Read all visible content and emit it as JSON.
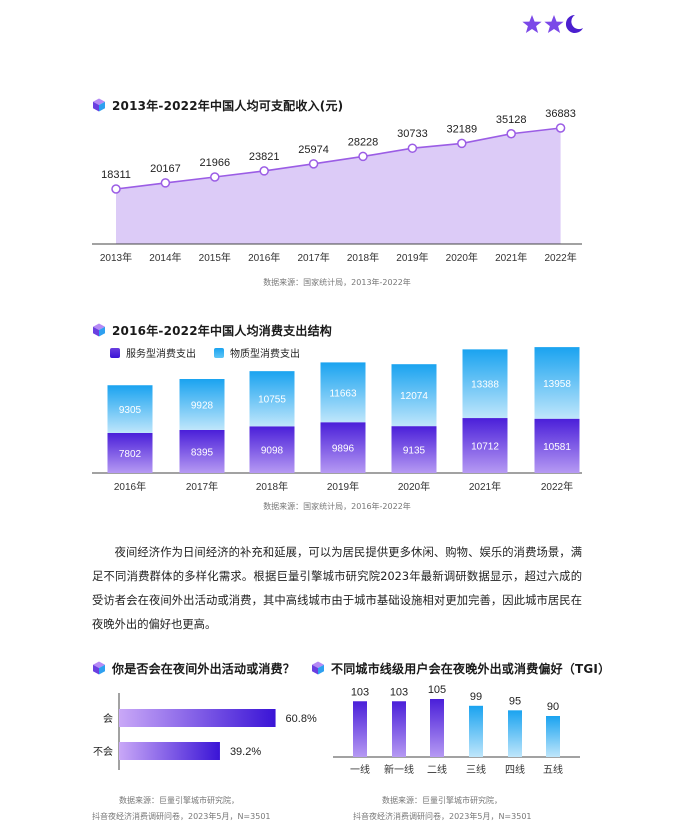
{
  "decor": {
    "icons": [
      "star-icon",
      "star-icon",
      "crescent-moon-icon"
    ],
    "color": "#7b48e8"
  },
  "income": {
    "title": "2013年-2022年中国人均可支配收入(元)",
    "source": "数据来源：国家统计局，2013年-2022年"
  },
  "consumption": {
    "title": "2016年-2022年中国人均消费支出结构",
    "source": "数据来源：国家统计局，2016年-2022年"
  },
  "paragraph": "夜间经济作为日间经济的补充和延展，可以为居民提供更多休闲、购物、娱乐的消费场景，满足不同消费群体的多样化需求。根据巨量引擎城市研究院2023年最新调研数据显示，超过六成的受访者会在夜间外出活动或消费，其中高线城市由于城市基础设施相对更加完善，因此城市居民在夜晚外出的偏好也更高。",
  "night": {
    "title": "你是否会在夜间外出活动或消费？",
    "source_line1": "数据来源：巨量引擎城市研究院，",
    "source_line2": "抖音夜经济消费调研问卷，2023年5月，N=3501"
  },
  "tgi": {
    "title": "不同城市线级用户会在夜晚外出或消费偏好（TGI）",
    "source_line1": "数据来源：巨量引擎城市研究院，",
    "source_line2": "抖音夜经济消费调研问卷，2023年5月，N=3501"
  },
  "chart_data": [
    {
      "type": "area",
      "title": "2013年-2022年中国人均可支配收入(元)",
      "categories": [
        "2013年",
        "2014年",
        "2015年",
        "2016年",
        "2017年",
        "2018年",
        "2019年",
        "2020年",
        "2021年",
        "2022年"
      ],
      "values": [
        18311,
        20167,
        21966,
        23821,
        25974,
        28228,
        30733,
        32189,
        35128,
        36883
      ],
      "colors": {
        "line": "#9b5de5",
        "fill": "#dccbf7"
      }
    },
    {
      "type": "bar",
      "stacked": true,
      "title": "2016年-2022年中国人均消费支出结构",
      "categories": [
        "2016年",
        "2017年",
        "2018年",
        "2019年",
        "2020年",
        "2021年",
        "2022年"
      ],
      "series": [
        {
          "name": "服务型消费支出",
          "values": [
            7802,
            8395,
            9098,
            9896,
            9135,
            10712,
            10581
          ],
          "color": "#4a1fd9"
        },
        {
          "name": "物质型消费支出",
          "values": [
            9305,
            9928,
            10755,
            11663,
            12074,
            13388,
            13958
          ],
          "color": "#1aa3f0"
        }
      ],
      "legend": "top-left"
    },
    {
      "type": "bar",
      "orientation": "horizontal",
      "title": "你是否会在夜间外出活动或消费？",
      "categories": [
        "会",
        "不会"
      ],
      "values": [
        60.8,
        39.2
      ],
      "value_labels": [
        "60.8%",
        "39.2%"
      ],
      "colors": {
        "from": "#c9a8f7",
        "to": "#3a14d6"
      }
    },
    {
      "type": "bar",
      "title": "不同城市线级用户会在夜晚外出或消费偏好（TGI）",
      "categories": [
        "一线",
        "新一线",
        "二线",
        "三线",
        "四线",
        "五线"
      ],
      "values": [
        103,
        103,
        105,
        99,
        95,
        90
      ],
      "colors": {
        "high": "#4a1fd9",
        "low": "#1aa3f0"
      }
    }
  ]
}
